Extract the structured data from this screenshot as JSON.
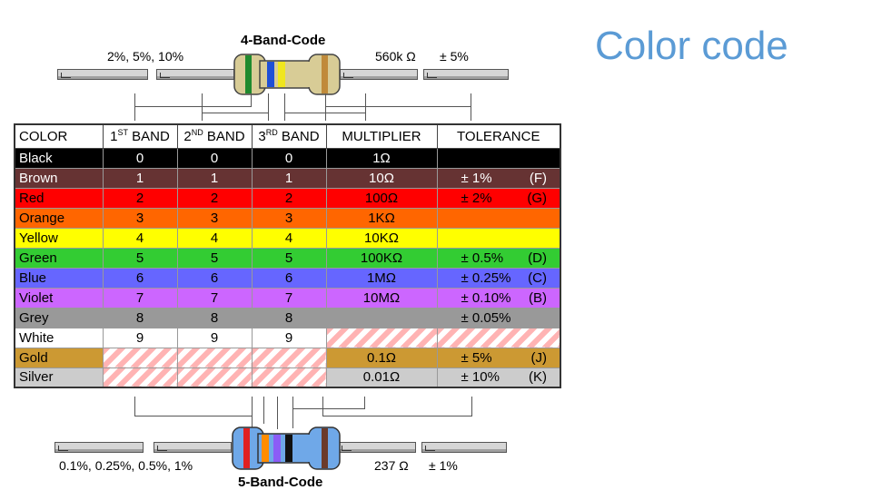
{
  "slide": {
    "title": "Color code"
  },
  "four_band": {
    "title": "4-Band-Code",
    "left_caption": "2%, 5%, 10%",
    "right_value": "560k Ω",
    "right_tol": "± 5%",
    "bands": [
      "#1f8a2e",
      "#1f4fd6",
      "#f0e61e",
      "#c08a3a"
    ]
  },
  "five_band": {
    "title": "5-Band-Code",
    "left_caption": "0.1%, 0.25%, 0.5%, 1%",
    "right_value": "237 Ω",
    "right_tol": "± 1%",
    "bands": [
      "#e02020",
      "#ff8c00",
      "#8b5cf6",
      "#111111",
      "#6b3a2a"
    ]
  },
  "table": {
    "headers": [
      "COLOR",
      "1ST BAND",
      "2ND BAND",
      "3RD BAND",
      "MULTIPLIER",
      "TOLERANCE"
    ],
    "header_parts": [
      {
        "num": "1",
        "sup": "ST",
        "rest": " BAND"
      },
      {
        "num": "2",
        "sup": "ND",
        "rest": " BAND"
      },
      {
        "num": "3",
        "sup": "RD",
        "rest": " BAND"
      }
    ],
    "rows": [
      {
        "color": "Black",
        "bg": "#000000",
        "fg": "#ffffff",
        "b1": "0",
        "b2": "0",
        "b3": "0",
        "mult": "1Ω",
        "tol": "",
        "code": ""
      },
      {
        "color": "Brown",
        "bg": "#663333",
        "fg": "#ffffff",
        "b1": "1",
        "b2": "1",
        "b3": "1",
        "mult": "10Ω",
        "tol": "± 1%",
        "code": "(F)"
      },
      {
        "color": "Red",
        "bg": "#ff0000",
        "fg": "#000000",
        "b1": "2",
        "b2": "2",
        "b3": "2",
        "mult": "100Ω",
        "tol": "± 2%",
        "code": "(G)"
      },
      {
        "color": "Orange",
        "bg": "#ff6600",
        "fg": "#000000",
        "b1": "3",
        "b2": "3",
        "b3": "3",
        "mult": "1KΩ",
        "tol": "",
        "code": ""
      },
      {
        "color": "Yellow",
        "bg": "#ffff00",
        "fg": "#000000",
        "b1": "4",
        "b2": "4",
        "b3": "4",
        "mult": "10KΩ",
        "tol": "",
        "code": ""
      },
      {
        "color": "Green",
        "bg": "#33cc33",
        "fg": "#000000",
        "b1": "5",
        "b2": "5",
        "b3": "5",
        "mult": "100KΩ",
        "tol": "± 0.5%",
        "code": "(D)"
      },
      {
        "color": "Blue",
        "bg": "#6666ff",
        "fg": "#000000",
        "b1": "6",
        "b2": "6",
        "b3": "6",
        "mult": "1MΩ",
        "tol": "± 0.25%",
        "code": "(C)"
      },
      {
        "color": "Violet",
        "bg": "#cc66ff",
        "fg": "#000000",
        "b1": "7",
        "b2": "7",
        "b3": "7",
        "mult": "10MΩ",
        "tol": "± 0.10%",
        "code": "(B)"
      },
      {
        "color": "Grey",
        "bg": "#999999",
        "fg": "#000000",
        "b1": "8",
        "b2": "8",
        "b3": "8",
        "mult": "",
        "tol": "± 0.05%",
        "code": ""
      },
      {
        "color": "White",
        "bg": "#ffffff",
        "fg": "#000000",
        "b1": "9",
        "b2": "9",
        "b3": "9",
        "mult": "",
        "tol": "",
        "code": ""
      },
      {
        "color": "Gold",
        "bg": "#cc9933",
        "fg": "#000000",
        "b1": "",
        "b2": "",
        "b3": "",
        "mult": "0.1Ω",
        "tol": "± 5%",
        "code": "(J)"
      },
      {
        "color": "Silver",
        "bg": "#cccccc",
        "fg": "#000000",
        "b1": "",
        "b2": "",
        "b3": "",
        "mult": "0.01Ω",
        "tol": "± 10%",
        "code": "(K)"
      }
    ],
    "hatched": {
      "White": [
        "mult",
        "tol"
      ],
      "Gold": [
        "b1",
        "b2",
        "b3"
      ],
      "Silver": [
        "b1",
        "b2",
        "b3"
      ]
    }
  }
}
